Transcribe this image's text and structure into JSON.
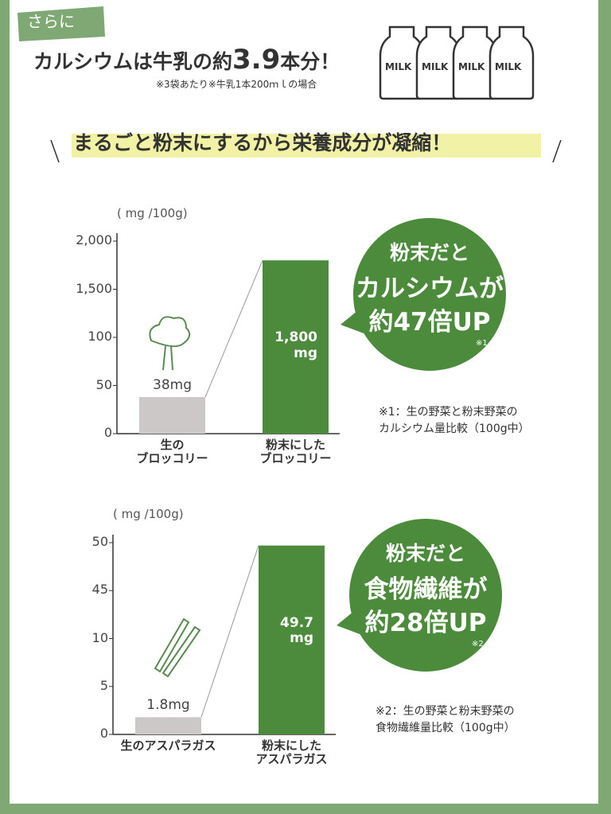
{
  "header": {
    "tag": "さらに",
    "headline_pre": "カルシウムは牛乳の約",
    "headline_num": "3.9",
    "headline_post": "本分！",
    "note": "※3袋あたり※牛乳1本200ｍｌの場合",
    "milk_label": "MILK",
    "banner": "まるごと粉末にするから栄養成分が凝縮！"
  },
  "chart_data": [
    {
      "type": "bar",
      "y_label": "( mg /100g)",
      "categories": [
        "生の\nブロッコリー",
        "粉末にした\nブロッコリー"
      ],
      "values": [
        38,
        1800
      ],
      "value_labels": [
        "38mg",
        "1,800\nmg"
      ],
      "colors": [
        "#cdc8c8",
        "#4b8b3b"
      ],
      "ylim": [
        0,
        2000
      ],
      "yticks": [
        0,
        50,
        100,
        {
          "value": 1500,
          "label": "1,500"
        },
        {
          "value": 2000,
          "label": "2,000"
        }
      ],
      "axis_break": true,
      "callout": {
        "lines": [
          "粉末だと",
          "カルシウムが",
          "約47倍UP"
        ],
        "note": "※1"
      },
      "footnote": "※1：生の野菜と粉末野菜の\nカルシウム量比較（100g中）"
    },
    {
      "type": "bar",
      "y_label": "( mg /100g)",
      "categories": [
        "生のアスパラガス",
        "粉末にした\nアスパラガス"
      ],
      "values": [
        1.8,
        49.7
      ],
      "value_labels": [
        "1.8mg",
        "49.7\nmg"
      ],
      "colors": [
        "#cdc8c8",
        "#4b8b3b"
      ],
      "ylim": [
        0,
        50
      ],
      "yticks": [
        0,
        5,
        10,
        45,
        50
      ],
      "axis_break": true,
      "callout": {
        "lines": [
          "粉末だと",
          "食物繊維が",
          "約28倍UP"
        ],
        "note": "※2"
      },
      "footnote": "※2：生の野菜と粉末野菜の\n食物繊維量比較（100g中）"
    }
  ]
}
